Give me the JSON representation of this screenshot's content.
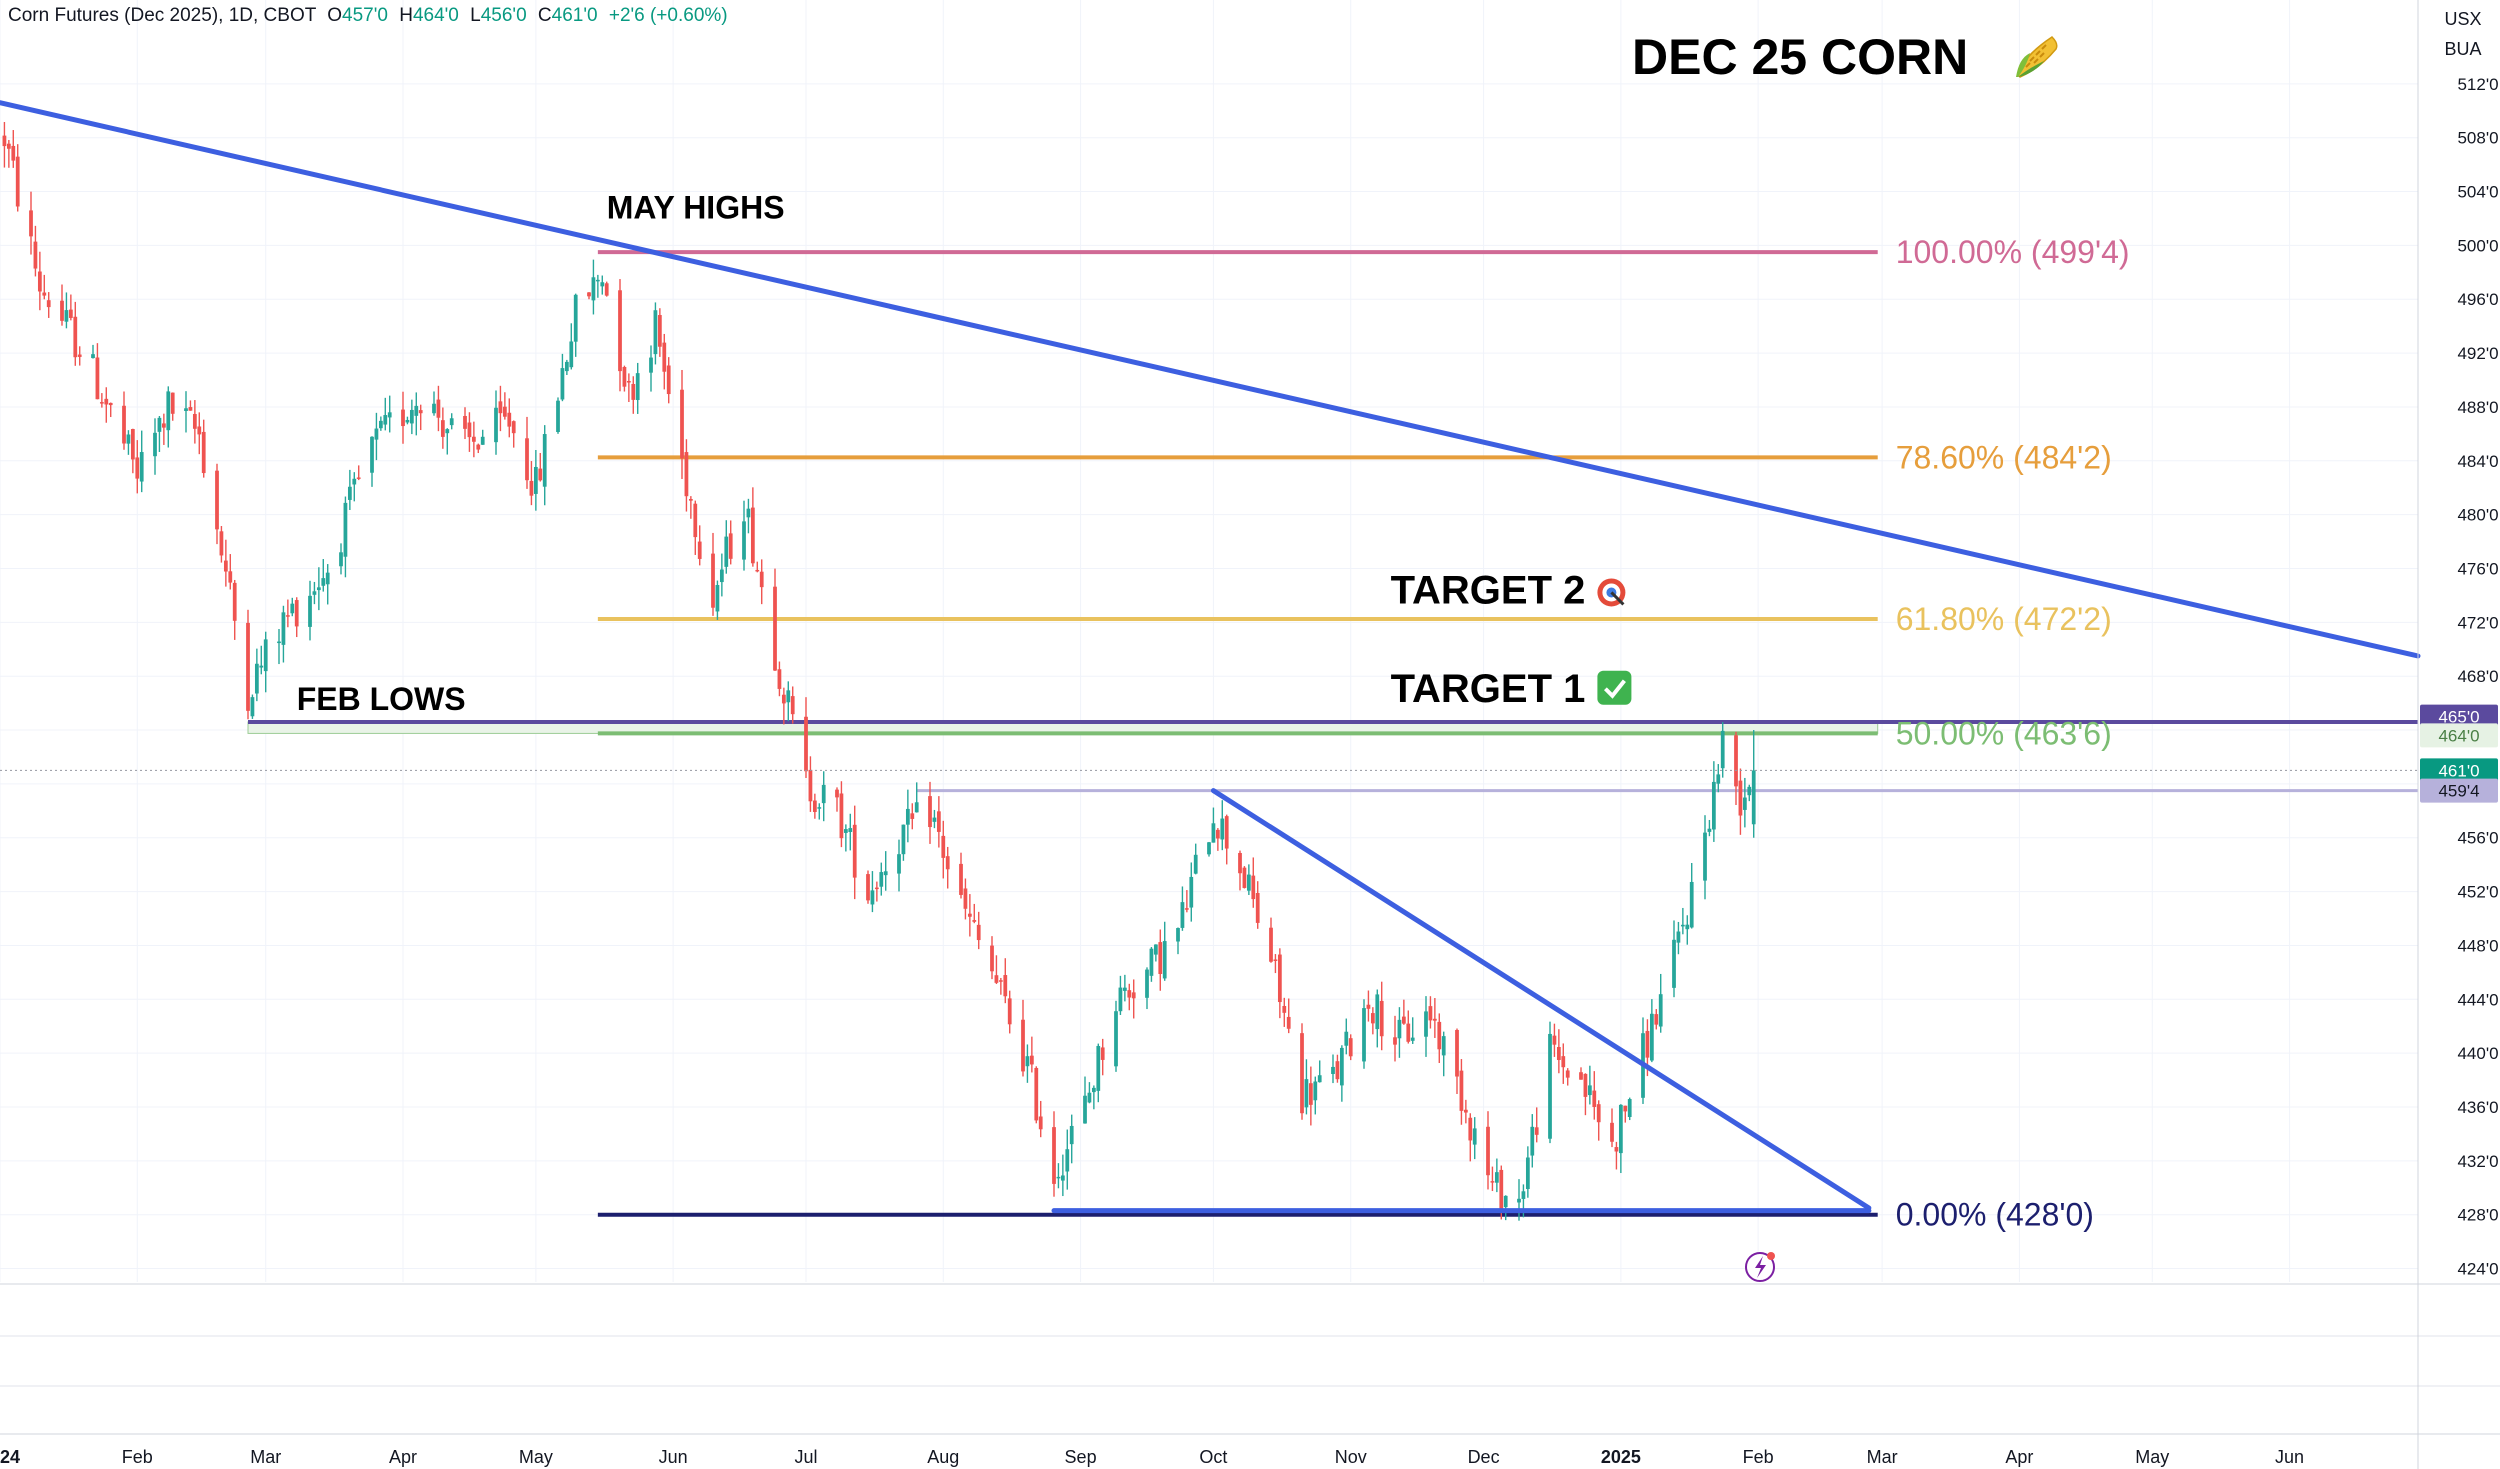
{
  "header": {
    "symbol": "Corn Futures (Dec 2025), 1D, CBOT",
    "open_label": "O",
    "open": "457'0",
    "high_label": "H",
    "high": "464'0",
    "low_label": "L",
    "low": "456'0",
    "close_label": "C",
    "close": "461'0",
    "change": "+2'6 (+0.60%)"
  },
  "currency_box": {
    "unit": "USX",
    "sub": "BUA"
  },
  "title": "DEC 25 CORN",
  "colors": {
    "up": "#26a69a",
    "down": "#ef5350",
    "trend": "#3d5fe0",
    "fib_100": "#d06a95",
    "fib_786": "#e69e3c",
    "fib_618": "#e9c25e",
    "fib_50": "#7cbd73",
    "fib_0": "#1c1f6e",
    "feb_lows": "#5b4a9e",
    "target_zone": "#b6b1db",
    "price_tag": "#089981"
  },
  "chart_data": {
    "type": "candlestick",
    "symbol": "Corn Futures (Dec 2025)",
    "timeframe": "1D",
    "exchange": "CBOT",
    "y_unit": "cents/bu (quoted in eighths)",
    "ylim": [
      423,
      516
    ],
    "xlim": [
      "2024-01-01",
      "2025-06-30"
    ],
    "y_ticks": [
      "512'0",
      "508'0",
      "504'0",
      "500'0",
      "496'0",
      "492'0",
      "488'0",
      "484'0",
      "480'0",
      "476'0",
      "472'0",
      "468'0",
      "464'0",
      "460'0",
      "456'0",
      "452'0",
      "448'0",
      "444'0",
      "440'0",
      "436'0",
      "432'0",
      "428'0",
      "424'0"
    ],
    "x_ticks": [
      {
        "date": "2024-01-01",
        "label": "2024",
        "bold": true
      },
      {
        "date": "2024-02-01",
        "label": "Feb"
      },
      {
        "date": "2024-03-01",
        "label": "Mar"
      },
      {
        "date": "2024-04-01",
        "label": "Apr"
      },
      {
        "date": "2024-05-01",
        "label": "May"
      },
      {
        "date": "2024-06-01",
        "label": "Jun"
      },
      {
        "date": "2024-07-01",
        "label": "Jul"
      },
      {
        "date": "2024-08-01",
        "label": "Aug"
      },
      {
        "date": "2024-09-01",
        "label": "Sep"
      },
      {
        "date": "2024-10-01",
        "label": "Oct"
      },
      {
        "date": "2024-11-01",
        "label": "Nov"
      },
      {
        "date": "2024-12-01",
        "label": "Dec"
      },
      {
        "date": "2025-01-01",
        "label": "2025",
        "bold": true
      },
      {
        "date": "2025-02-01",
        "label": "Feb"
      },
      {
        "date": "2025-03-01",
        "label": "Mar"
      },
      {
        "date": "2025-04-01",
        "label": "Apr"
      },
      {
        "date": "2025-05-01",
        "label": "May"
      },
      {
        "date": "2025-06-01",
        "label": "Jun"
      }
    ],
    "price_path": [
      [
        "2024-01-02",
        508
      ],
      [
        "2024-01-10",
        497
      ],
      [
        "2024-01-20",
        492
      ],
      [
        "2024-02-01",
        483
      ],
      [
        "2024-02-08",
        488
      ],
      [
        "2024-02-15",
        486
      ],
      [
        "2024-02-26",
        467
      ],
      [
        "2024-03-05",
        472
      ],
      [
        "2024-03-15",
        476
      ],
      [
        "2024-03-25",
        485
      ],
      [
        "2024-04-05",
        489
      ],
      [
        "2024-04-15",
        485
      ],
      [
        "2024-04-25",
        487
      ],
      [
        "2024-05-01",
        482
      ],
      [
        "2024-05-10",
        495
      ],
      [
        "2024-05-16",
        498
      ],
      [
        "2024-05-22",
        489
      ],
      [
        "2024-05-28",
        494
      ],
      [
        "2024-06-03",
        484
      ],
      [
        "2024-06-10",
        474
      ],
      [
        "2024-06-17",
        481
      ],
      [
        "2024-06-24",
        470
      ],
      [
        "2024-07-01",
        460
      ],
      [
        "2024-07-08",
        458
      ],
      [
        "2024-07-15",
        452
      ],
      [
        "2024-07-22",
        456
      ],
      [
        "2024-07-29",
        458
      ],
      [
        "2024-08-05",
        451
      ],
      [
        "2024-08-12",
        446
      ],
      [
        "2024-08-20",
        439
      ],
      [
        "2024-08-26",
        431
      ],
      [
        "2024-09-02",
        436
      ],
      [
        "2024-09-09",
        444
      ],
      [
        "2024-09-16",
        446
      ],
      [
        "2024-09-23",
        449
      ],
      [
        "2024-10-01",
        458
      ],
      [
        "2024-10-07",
        454
      ],
      [
        "2024-10-14",
        447
      ],
      [
        "2024-10-21",
        437
      ],
      [
        "2024-10-28",
        438
      ],
      [
        "2024-11-05",
        444
      ],
      [
        "2024-11-12",
        441
      ],
      [
        "2024-11-19",
        443
      ],
      [
        "2024-11-26",
        437
      ],
      [
        "2024-12-03",
        430
      ],
      [
        "2024-12-09",
        429
      ],
      [
        "2024-12-16",
        440
      ],
      [
        "2024-12-23",
        438
      ],
      [
        "2024-12-30",
        433
      ],
      [
        "2025-01-06",
        440
      ],
      [
        "2025-01-13",
        447
      ],
      [
        "2025-01-17",
        452
      ],
      [
        "2025-01-21",
        458
      ],
      [
        "2025-01-24",
        463
      ],
      [
        "2025-01-28",
        459
      ],
      [
        "2025-01-31",
        461
      ]
    ],
    "last_candle": {
      "date": "2025-01-31",
      "open": "457'0",
      "high": "464'0",
      "low": "456'0",
      "close": "461'0"
    },
    "horizontal_levels": [
      {
        "name": "100.00%",
        "label": "100.00% (499'4)",
        "value": 499.5,
        "from": "2024-05-15",
        "to": "2025-02-28",
        "color_key": "fib_100"
      },
      {
        "name": "78.60%",
        "label": "78.60% (484'2)",
        "value": 484.25,
        "from": "2024-05-15",
        "to": "2025-02-28",
        "color_key": "fib_786"
      },
      {
        "name": "61.80%",
        "label": "61.80% (472'2)",
        "value": 472.25,
        "from": "2024-05-15",
        "to": "2025-02-28",
        "color_key": "fib_618"
      },
      {
        "name": "50.00%",
        "label": "50.00% (463'6)",
        "value": 463.75,
        "from": "2024-05-15",
        "to": "2025-02-28",
        "color_key": "fib_50"
      },
      {
        "name": "0.00%",
        "label": "0.00% (428'0)",
        "value": 428.0,
        "from": "2024-05-15",
        "to": "2025-02-28",
        "color_key": "fib_0"
      },
      {
        "name": "feb-lows",
        "value": 464.6,
        "from": "2024-02-26",
        "to": "2025-06-30",
        "color_key": "feb_lows"
      },
      {
        "name": "neckline",
        "value": 459.5,
        "from": "2024-07-26",
        "to": "2025-06-30",
        "color_key": "target_zone"
      }
    ],
    "trendlines": [
      {
        "name": "long-term-downtrend",
        "from": [
          "2024-01-01",
          510.6
        ],
        "to": [
          "2025-06-30",
          469.5
        ]
      },
      {
        "name": "triangle-resistance",
        "from": [
          "2024-10-01",
          459.5
        ],
        "to": [
          "2025-02-26",
          428.5
        ]
      },
      {
        "name": "triangle-support",
        "from": [
          "2024-08-26",
          428.3
        ],
        "to": [
          "2025-02-26",
          428.3
        ]
      }
    ],
    "annotations": [
      {
        "text": "MAY HIGHS",
        "date": "2024-05-17",
        "value": 502
      },
      {
        "text": "FEB LOWS",
        "date": "2024-03-08",
        "value": 465.5
      },
      {
        "text": "TARGET 2",
        "date": "2024-11-10",
        "value": 473.4
      },
      {
        "text": "TARGET 1",
        "date": "2024-11-10",
        "value": 466.1
      }
    ],
    "price_tags": [
      {
        "label": "465'0",
        "value": 465.0,
        "bg": "#5b4a9e",
        "fg": "#ffffff"
      },
      {
        "label": "464'0",
        "value": 463.6,
        "bg": "#e6f2e4",
        "fg": "#4a7f45"
      },
      {
        "label": "461'0",
        "value": 461.0,
        "bg": "#089981",
        "fg": "#ffffff"
      },
      {
        "label": "459'4",
        "value": 459.5,
        "bg": "#b6b1db",
        "fg": "#131722"
      }
    ],
    "last_price": 461.0
  },
  "x_axis_labels": [],
  "grid": true
}
